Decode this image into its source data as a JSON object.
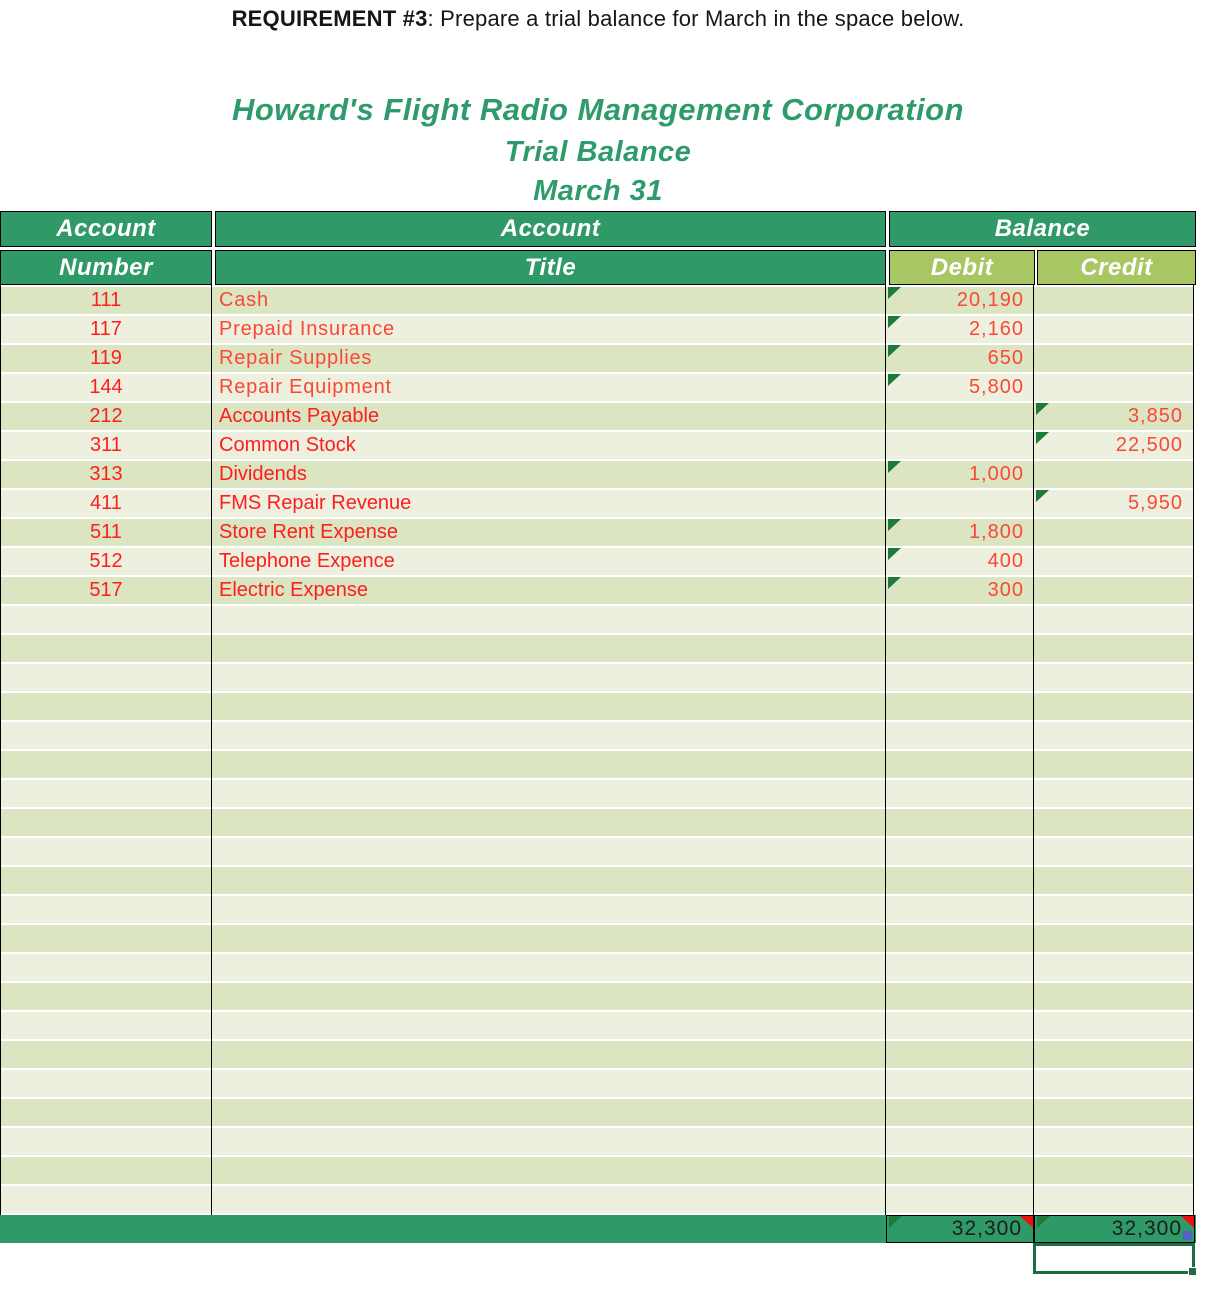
{
  "requirement": {
    "label": "REQUIREMENT #3",
    "text": ": Prepare a trial balance for March in the space below."
  },
  "titles": {
    "company": "Howard's Flight Radio Management Corporation",
    "report": "Trial Balance",
    "date": "March 31"
  },
  "table": {
    "headers": {
      "account_number": [
        "Account",
        "Number"
      ],
      "account_title": [
        "Account",
        "Title"
      ],
      "balance": "Balance",
      "debit": "Debit",
      "credit": "Credit"
    },
    "rows": [
      {
        "number": "111",
        "title": "Cash",
        "debit": "20,190",
        "credit": "",
        "style": "gothic"
      },
      {
        "number": "117",
        "title": "Prepaid Insurance",
        "debit": "2,160",
        "credit": "",
        "style": "gothic"
      },
      {
        "number": "119",
        "title": "Repair Supplies",
        "debit": "650",
        "credit": "",
        "style": "gothic"
      },
      {
        "number": "144",
        "title": "Repair Equipment",
        "debit": "5,800",
        "credit": "",
        "style": "gothic"
      },
      {
        "number": "212",
        "title": "Accounts Payable",
        "debit": "",
        "credit": "3,850",
        "style": "plain"
      },
      {
        "number": "311",
        "title": "Common Stock",
        "debit": "",
        "credit": "22,500",
        "style": "plain"
      },
      {
        "number": "313",
        "title": "Dividends",
        "debit": "1,000",
        "credit": "",
        "style": "plain"
      },
      {
        "number": "411",
        "title": "FMS Repair Revenue",
        "debit": "",
        "credit": "5,950",
        "style": "plain"
      },
      {
        "number": "511",
        "title": "Store Rent Expense",
        "debit": "1,800",
        "credit": "",
        "style": "plain"
      },
      {
        "number": "512",
        "title": "Telephone Expence",
        "debit": "400",
        "credit": "",
        "style": "plain"
      },
      {
        "number": "517",
        "title": "Electric Expense",
        "debit": "300",
        "credit": "",
        "style": "plain"
      }
    ],
    "empty_rows": 21,
    "totals": {
      "debit": "32,300",
      "credit": "32,300"
    }
  },
  "colors": {
    "header_green": "#2f9a68",
    "subheader_yellow_green": "#a8c763",
    "row_stripe_dark": "#dbe5c2",
    "row_stripe_light": "#edf0de",
    "account_text_red": "#ff1d1d",
    "value_text_red": "#fb4836",
    "title_green": "#2f9b6c",
    "flag_triangle_green": "#1e7a38",
    "flag_triangle_red": "#ee1111",
    "smart_tag_blue": "#5560c5",
    "selection_green": "#1e6b44",
    "total_text_black": "#1c1c1c"
  }
}
